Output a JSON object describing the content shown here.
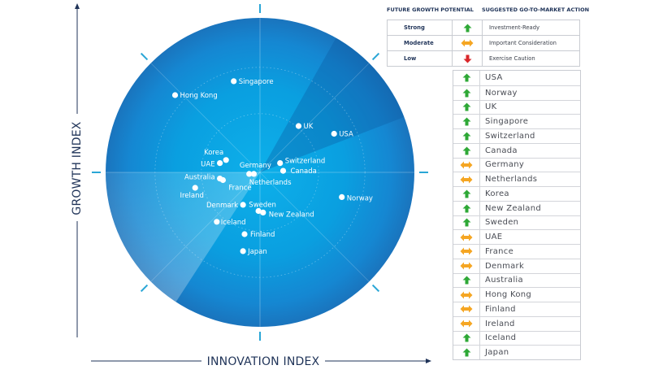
{
  "chart_data": {
    "type": "scatter",
    "title": "",
    "xlabel": "INNOVATION INDEX",
    "ylabel": "GROWTH INDEX",
    "xlim": [
      -1,
      1
    ],
    "ylim": [
      -1,
      1
    ],
    "grid": "polar rings and spokes",
    "points": [
      {
        "label": "Singapore",
        "x": -0.17,
        "y": 0.59
      },
      {
        "label": "Hong Kong",
        "x": -0.55,
        "y": 0.5
      },
      {
        "label": "UK",
        "x": 0.25,
        "y": 0.3
      },
      {
        "label": "USA",
        "x": 0.48,
        "y": 0.25
      },
      {
        "label": "Korea",
        "x": -0.22,
        "y": 0.08
      },
      {
        "label": "UAE",
        "x": -0.26,
        "y": 0.06
      },
      {
        "label": "Germany",
        "x": -0.04,
        "y": -0.01
      },
      {
        "label": "Netherlands",
        "x": -0.07,
        "y": -0.01
      },
      {
        "label": "Switzerland",
        "x": 0.13,
        "y": 0.06
      },
      {
        "label": "Canada",
        "x": 0.15,
        "y": 0.01
      },
      {
        "label": "Australia",
        "x": -0.26,
        "y": -0.04
      },
      {
        "label": "France",
        "x": -0.24,
        "y": -0.05
      },
      {
        "label": "Ireland",
        "x": -0.42,
        "y": -0.1
      },
      {
        "label": "Norway",
        "x": 0.53,
        "y": -0.16
      },
      {
        "label": "Denmark",
        "x": -0.11,
        "y": -0.21
      },
      {
        "label": "Sweden",
        "x": -0.01,
        "y": -0.25
      },
      {
        "label": "New Zealand",
        "x": 0.02,
        "y": -0.26
      },
      {
        "label": "Iceland",
        "x": -0.28,
        "y": -0.32
      },
      {
        "label": "Finland",
        "x": -0.1,
        "y": -0.4
      },
      {
        "label": "Japan",
        "x": -0.11,
        "y": -0.51
      }
    ]
  },
  "legend": {
    "header_potential": "FUTURE GROWTH POTENTIAL",
    "header_action": "SUGGESTED GO-TO-MARKET ACTION",
    "rows": [
      {
        "level": "Strong",
        "icon": "arrow-up-icon",
        "action": "Investment-Ready",
        "color": "#2ea836"
      },
      {
        "level": "Moderate",
        "icon": "arrow-left-right-icon",
        "action": "Important Consideration",
        "color": "#f5a623"
      },
      {
        "level": "Low",
        "icon": "arrow-down-icon",
        "action": "Exercise Caution",
        "color": "#d9262a"
      }
    ]
  },
  "countries": [
    {
      "name": "USA",
      "potential": "Strong"
    },
    {
      "name": "Norway",
      "potential": "Strong"
    },
    {
      "name": "UK",
      "potential": "Strong"
    },
    {
      "name": "Singapore",
      "potential": "Strong"
    },
    {
      "name": "Switzerland",
      "potential": "Strong"
    },
    {
      "name": "Canada",
      "potential": "Strong"
    },
    {
      "name": "Germany",
      "potential": "Moderate"
    },
    {
      "name": "Netherlands",
      "potential": "Moderate"
    },
    {
      "name": "Korea",
      "potential": "Strong"
    },
    {
      "name": "New Zealand",
      "potential": "Strong"
    },
    {
      "name": "Sweden",
      "potential": "Strong"
    },
    {
      "name": "UAE",
      "potential": "Moderate"
    },
    {
      "name": "France",
      "potential": "Moderate"
    },
    {
      "name": "Denmark",
      "potential": "Moderate"
    },
    {
      "name": "Australia",
      "potential": "Strong"
    },
    {
      "name": "Hong Kong",
      "potential": "Moderate"
    },
    {
      "name": "Finland",
      "potential": "Moderate"
    },
    {
      "name": "Ireland",
      "potential": "Moderate"
    },
    {
      "name": "Iceland",
      "potential": "Strong"
    },
    {
      "name": "Japan",
      "potential": "Strong"
    }
  ],
  "colors": {
    "strong": "#2ea836",
    "moderate": "#f5a623",
    "low": "#d9262a",
    "axis": "#1f3358",
    "tick": "#2aa6d6",
    "disc_outer": "#1a7cc6",
    "disc_inner": "#0ea7e4"
  }
}
